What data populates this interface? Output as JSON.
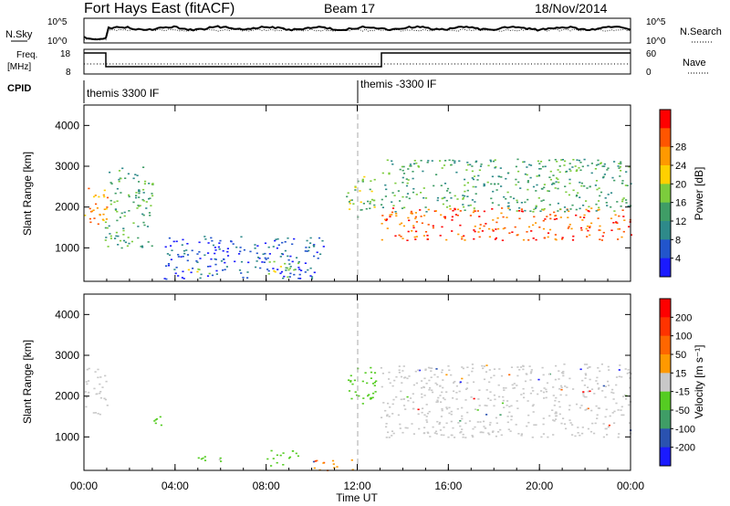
{
  "header": {
    "station": "Fort Hays East (fitACF)",
    "beam": "Beam 17",
    "date": "18/Nov/2014"
  },
  "strip_panels": {
    "nsky_label": "N.Sky",
    "nsky_ticks": [
      "10^5",
      "10^0"
    ],
    "nsearch_label": "N.Search",
    "nsearch_ticks": [
      "10^5",
      "10^0"
    ],
    "freq_label_line1": "Freq.",
    "freq_label_line2": "[MHz]",
    "freq_ticks": [
      "18",
      "8"
    ],
    "nave_label": "Nave",
    "nave_ticks": [
      "60",
      "0"
    ],
    "cpid_label": "CPID",
    "cpid_modes": [
      "themis 3300 IF",
      "themis -3300 IF"
    ],
    "cpid_change_hour": 12.0
  },
  "chart_data": [
    {
      "type": "heatmap",
      "name": "power",
      "ylabel": "Slant Range [km]",
      "xlabel": "Time UT",
      "xlim": [
        0,
        24
      ],
      "ylim": [
        180,
        4500
      ],
      "y_ticks": [
        "1000",
        "2000",
        "3000",
        "4000"
      ],
      "x_ticks": [
        "00:00",
        "04:00",
        "08:00",
        "12:00",
        "16:00",
        "20:00",
        "00:00"
      ],
      "colorbar": {
        "label": "Power [dB]",
        "ticks": [
          "4",
          "8",
          "12",
          "16",
          "20",
          "24",
          "28"
        ],
        "colors": [
          "#1a1aff",
          "#2255cc",
          "#2e8a8a",
          "#3f9d66",
          "#7ccc3c",
          "#ffd000",
          "#ff9900",
          "#ff5500",
          "#ff0000"
        ]
      },
      "echo_regions": [
        {
          "t_start": 0.0,
          "t_end": 1.0,
          "range_min": 1500,
          "range_max": 2600,
          "level": 6
        },
        {
          "t_start": 0.9,
          "t_end": 3.0,
          "range_min": 1000,
          "range_max": 3000,
          "level": 3
        },
        {
          "t_start": 3.5,
          "t_end": 10.5,
          "range_min": 250,
          "range_max": 1300,
          "level": 1
        },
        {
          "t_start": 4.5,
          "t_end": 5.5,
          "range_min": 350,
          "range_max": 550,
          "level": 4
        },
        {
          "t_start": 8.0,
          "t_end": 9.5,
          "range_min": 300,
          "range_max": 700,
          "level": 4
        },
        {
          "t_start": 11.5,
          "t_end": 12.8,
          "range_min": 1700,
          "range_max": 2800,
          "level": 4
        },
        {
          "t_start": 13.0,
          "t_end": 24.0,
          "range_min": 1200,
          "range_max": 2000,
          "level": 7
        },
        {
          "t_start": 13.0,
          "t_end": 24.0,
          "range_min": 1900,
          "range_max": 3200,
          "level": 3
        }
      ]
    },
    {
      "type": "heatmap",
      "name": "velocity",
      "ylabel": "Slant Range [km]",
      "xlabel": "Time UT",
      "xlim": [
        0,
        24
      ],
      "ylim": [
        180,
        4500
      ],
      "y_ticks": [
        "1000",
        "2000",
        "3000",
        "4000"
      ],
      "x_ticks": [
        "00:00",
        "04:00",
        "08:00",
        "12:00",
        "16:00",
        "20:00",
        "00:00"
      ],
      "colorbar": {
        "label": "Velocity [m s⁻¹]",
        "ticks": [
          "200",
          "100",
          "50",
          "15",
          "-15",
          "-50",
          "-100",
          "-200"
        ],
        "colors": [
          "#1a1aff",
          "#2a52b0",
          "#3f9d66",
          "#55cc22",
          "#c8c8c8",
          "#ff9900",
          "#ff6600",
          "#ff3300",
          "#ff0000"
        ]
      },
      "echo_regions": [
        {
          "t_start": 0.0,
          "t_end": 1.0,
          "range_min": 1500,
          "range_max": 2700,
          "color": "gray"
        },
        {
          "t_start": 3.0,
          "t_end": 3.6,
          "range_min": 1300,
          "range_max": 1700,
          "color": "green"
        },
        {
          "t_start": 4.5,
          "t_end": 6.0,
          "range_min": 350,
          "range_max": 550,
          "color": "green"
        },
        {
          "t_start": 8.0,
          "t_end": 9.5,
          "range_min": 300,
          "range_max": 700,
          "color": "green"
        },
        {
          "t_start": 10.0,
          "t_end": 12.0,
          "range_min": 180,
          "range_max": 450,
          "color": "orange"
        },
        {
          "t_start": 11.5,
          "t_end": 12.8,
          "range_min": 1800,
          "range_max": 2800,
          "color": "green"
        },
        {
          "t_start": 13.0,
          "t_end": 24.0,
          "range_min": 1000,
          "range_max": 2800,
          "color": "gray"
        }
      ]
    }
  ]
}
